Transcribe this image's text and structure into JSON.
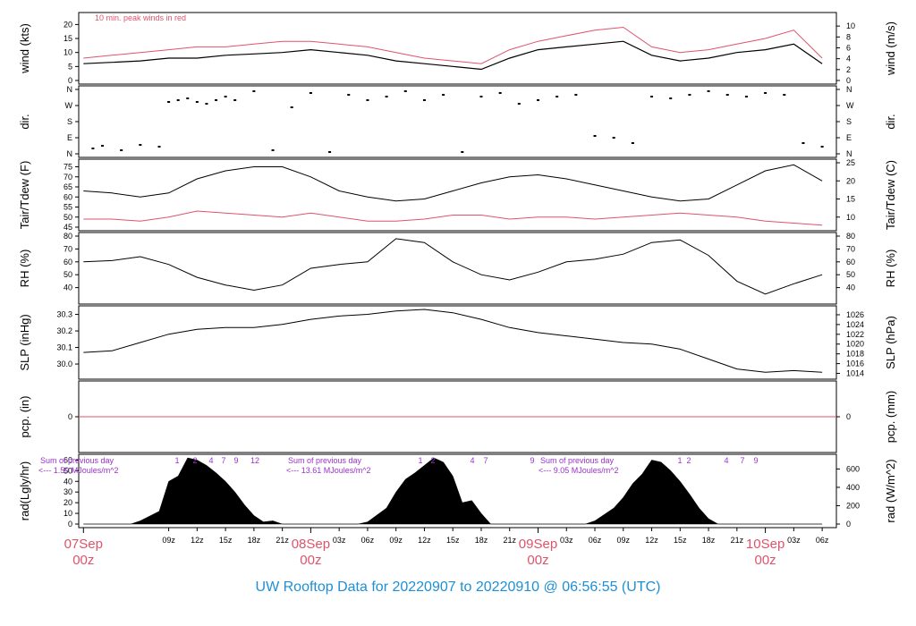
{
  "footer": {
    "title": "UW Rooftop Data for 20220907  to  20220910 @ 06:56:55  (UTC)"
  },
  "colors": {
    "red": "#DF536B",
    "purple": "#9A32CD",
    "blue": "#1E8FD6",
    "black": "#000000"
  },
  "chart_data": [
    {
      "id": "wind",
      "type": "line",
      "ylabel": "wind (kts)",
      "ylabel_right": "wind (m/s)",
      "ylim": [
        0,
        23
      ],
      "yticks": [
        0,
        5,
        10,
        15,
        20
      ],
      "yticks_right": [
        0,
        2,
        4,
        6,
        8,
        10
      ],
      "annotation": "10 min. peak winds in red",
      "series": [
        {
          "name": "wind",
          "color": "#000000",
          "x": [
            0,
            3,
            6,
            9,
            12,
            15,
            18,
            21,
            24,
            27,
            30,
            33,
            36,
            39,
            42,
            45,
            48,
            51,
            54,
            57,
            60,
            63,
            66,
            69,
            72,
            75,
            78
          ],
          "values": [
            6,
            6.5,
            7,
            8,
            8,
            9,
            9.5,
            10,
            11,
            10,
            9,
            7,
            6,
            5,
            4,
            8,
            11,
            12,
            13,
            14,
            9,
            7,
            8,
            10,
            11,
            13,
            6
          ]
        },
        {
          "name": "10 min. peak winds",
          "color": "#DF536B",
          "x": [
            0,
            3,
            6,
            9,
            12,
            15,
            18,
            21,
            24,
            27,
            30,
            33,
            36,
            39,
            42,
            45,
            48,
            51,
            54,
            57,
            60,
            63,
            66,
            69,
            72,
            75,
            78
          ],
          "values": [
            8,
            9,
            10,
            11,
            12,
            12,
            13,
            14,
            14,
            13,
            12,
            10,
            8,
            7,
            6,
            11,
            14,
            16,
            18,
            19,
            12,
            10,
            11,
            13,
            15,
            18,
            8
          ]
        }
      ]
    },
    {
      "id": "dir",
      "type": "scatter",
      "ylabel": "dir.",
      "ylabel_right": "dir.",
      "ytick_labels": [
        "N",
        "E",
        "S",
        "W",
        "N"
      ],
      "series": [
        {
          "name": "direction",
          "color": "#000000",
          "x": [
            1,
            2,
            4,
            6,
            8,
            9,
            10,
            11,
            12,
            13,
            14,
            15,
            16,
            18,
            20,
            22,
            24,
            26,
            28,
            30,
            32,
            34,
            36,
            38,
            40,
            42,
            44,
            46,
            48,
            50,
            52,
            54,
            56,
            58,
            60,
            62,
            64,
            66,
            68,
            70,
            72,
            74,
            76,
            78
          ],
          "values": [
            30,
            45,
            20,
            50,
            40,
            290,
            300,
            310,
            290,
            280,
            300,
            320,
            300,
            350,
            20,
            260,
            340,
            10,
            330,
            300,
            320,
            350,
            300,
            330,
            10,
            320,
            340,
            280,
            300,
            320,
            330,
            100,
            90,
            60,
            320,
            310,
            330,
            350,
            330,
            320,
            340,
            330,
            60,
            40
          ]
        }
      ]
    },
    {
      "id": "temp",
      "type": "line",
      "ylabel": "Tair/Tdew (F)",
      "ylabel_right": "Tair/Tdew (C)",
      "ylim": [
        45,
        77
      ],
      "yticks": [
        45,
        50,
        55,
        60,
        65,
        70,
        75
      ],
      "yticks_right": [
        10,
        15,
        20,
        25
      ],
      "series": [
        {
          "name": "Tair",
          "color": "#000000",
          "x": [
            0,
            3,
            6,
            9,
            12,
            15,
            18,
            21,
            24,
            27,
            30,
            33,
            36,
            39,
            42,
            45,
            48,
            51,
            54,
            57,
            60,
            63,
            66,
            69,
            72,
            75,
            78
          ],
          "values": [
            63,
            62,
            60,
            62,
            69,
            73,
            75,
            75,
            70,
            63,
            60,
            58,
            59,
            63,
            67,
            70,
            71,
            69,
            66,
            63,
            60,
            58,
            59,
            66,
            73,
            76,
            68
          ]
        },
        {
          "name": "Tdew",
          "color": "#DF536B",
          "x": [
            0,
            3,
            6,
            9,
            12,
            15,
            18,
            21,
            24,
            27,
            30,
            33,
            36,
            39,
            42,
            45,
            48,
            51,
            54,
            57,
            60,
            63,
            66,
            69,
            72,
            75,
            78
          ],
          "values": [
            49,
            49,
            48,
            50,
            53,
            52,
            51,
            50,
            52,
            50,
            48,
            48,
            49,
            51,
            51,
            49,
            50,
            50,
            49,
            50,
            51,
            52,
            51,
            50,
            48,
            47,
            46
          ]
        }
      ]
    },
    {
      "id": "rh",
      "type": "line",
      "ylabel": "RH (%)",
      "ylabel_right": "RH (%)",
      "ylim": [
        30,
        80
      ],
      "yticks": [
        40,
        50,
        60,
        70,
        80
      ],
      "yticks_right": [
        40,
        50,
        60,
        70,
        80
      ],
      "series": [
        {
          "name": "RH",
          "color": "#000000",
          "x": [
            0,
            3,
            6,
            9,
            12,
            15,
            18,
            21,
            24,
            27,
            30,
            33,
            36,
            39,
            42,
            45,
            48,
            51,
            54,
            57,
            60,
            63,
            66,
            69,
            72,
            75,
            78
          ],
          "values": [
            60,
            61,
            64,
            58,
            48,
            42,
            38,
            42,
            55,
            58,
            60,
            78,
            75,
            60,
            50,
            46,
            52,
            60,
            62,
            66,
            75,
            77,
            65,
            45,
            35,
            43,
            50
          ]
        }
      ]
    },
    {
      "id": "slp",
      "type": "line",
      "ylabel": "SLP (inHg)",
      "ylabel_right": "SLP (hPa)",
      "ylim": [
        29.93,
        30.33
      ],
      "yticks": [
        30.0,
        30.1,
        30.2,
        30.3
      ],
      "yticks_right": [
        1014,
        1016,
        1018,
        1020,
        1022,
        1024,
        1026
      ],
      "series": [
        {
          "name": "SLP",
          "color": "#000000",
          "x": [
            0,
            3,
            6,
            9,
            12,
            15,
            18,
            21,
            24,
            27,
            30,
            33,
            36,
            39,
            42,
            45,
            48,
            51,
            54,
            57,
            60,
            63,
            66,
            69,
            72,
            75,
            78
          ],
          "values": [
            30.07,
            30.08,
            30.13,
            30.18,
            30.21,
            30.22,
            30.22,
            30.24,
            30.27,
            30.29,
            30.3,
            30.32,
            30.33,
            30.31,
            30.27,
            30.22,
            30.19,
            30.17,
            30.15,
            30.13,
            30.12,
            30.09,
            30.03,
            29.97,
            29.95,
            29.96,
            29.95
          ]
        }
      ]
    },
    {
      "id": "pcp",
      "type": "line",
      "ylabel": "pcp. (in)",
      "ylabel_right": "pcp. (mm)",
      "yticks": [
        0
      ],
      "yticks_right": [
        0
      ],
      "series": [
        {
          "name": "pcp",
          "color": "#DF536B",
          "x": [
            0,
            78
          ],
          "values": [
            0,
            0
          ]
        }
      ]
    },
    {
      "id": "rad",
      "type": "area",
      "ylabel": "rad(Lgly/hr)",
      "ylabel_right": "rad (W/m^2)",
      "ylim": [
        0,
        62
      ],
      "yticks": [
        0,
        10,
        20,
        30,
        40,
        50,
        60
      ],
      "yticks_right": [
        0,
        200,
        400,
        600
      ],
      "annotations": [
        {
          "line1": "Sum of previous day",
          "line2": "<--- 1.59 MJoules/m^2"
        },
        {
          "line1": "Sum of previous day",
          "line2": "<--- 13.61 MJoules/m^2"
        },
        {
          "line1": "Sum of previous day",
          "line2": "<--- 9.05 MJoules/m^2"
        }
      ],
      "hour_markers": [
        "1",
        "2",
        "4",
        "7",
        "9",
        "12"
      ],
      "series": [
        {
          "name": "radiation",
          "color": "#000000",
          "x": [
            0,
            5,
            6,
            8,
            9,
            10,
            11,
            12,
            13,
            14,
            15,
            16,
            17,
            18,
            19,
            20,
            21,
            29,
            30,
            32,
            33,
            34,
            35,
            36,
            37,
            38,
            39,
            40,
            41,
            42,
            43,
            53,
            54,
            56,
            57,
            58,
            59,
            60,
            61,
            62,
            63,
            64,
            65,
            66,
            67,
            78
          ],
          "values": [
            0,
            0,
            3,
            12,
            40,
            45,
            62,
            60,
            55,
            48,
            40,
            30,
            18,
            8,
            2,
            3,
            0,
            0,
            2,
            15,
            30,
            42,
            48,
            55,
            62,
            58,
            45,
            20,
            22,
            10,
            0,
            0,
            3,
            15,
            25,
            38,
            47,
            60,
            58,
            50,
            40,
            28,
            15,
            5,
            0,
            0
          ]
        }
      ]
    }
  ],
  "xaxis": {
    "tick_labels": [
      "09z",
      "12z",
      "15z",
      "18z",
      "21z",
      "03z",
      "06z",
      "09z",
      "12z",
      "15z",
      "18z",
      "21z",
      "03z",
      "06z",
      "09z",
      "12z",
      "15z",
      "18z",
      "21z",
      "03z",
      "06z"
    ],
    "date_labels": [
      {
        "day": "07Sep",
        "hour": "00z"
      },
      {
        "day": "08Sep",
        "hour": "00z"
      },
      {
        "day": "09Sep",
        "hour": "00z"
      },
      {
        "day": "10Sep",
        "hour": "00z"
      }
    ]
  }
}
